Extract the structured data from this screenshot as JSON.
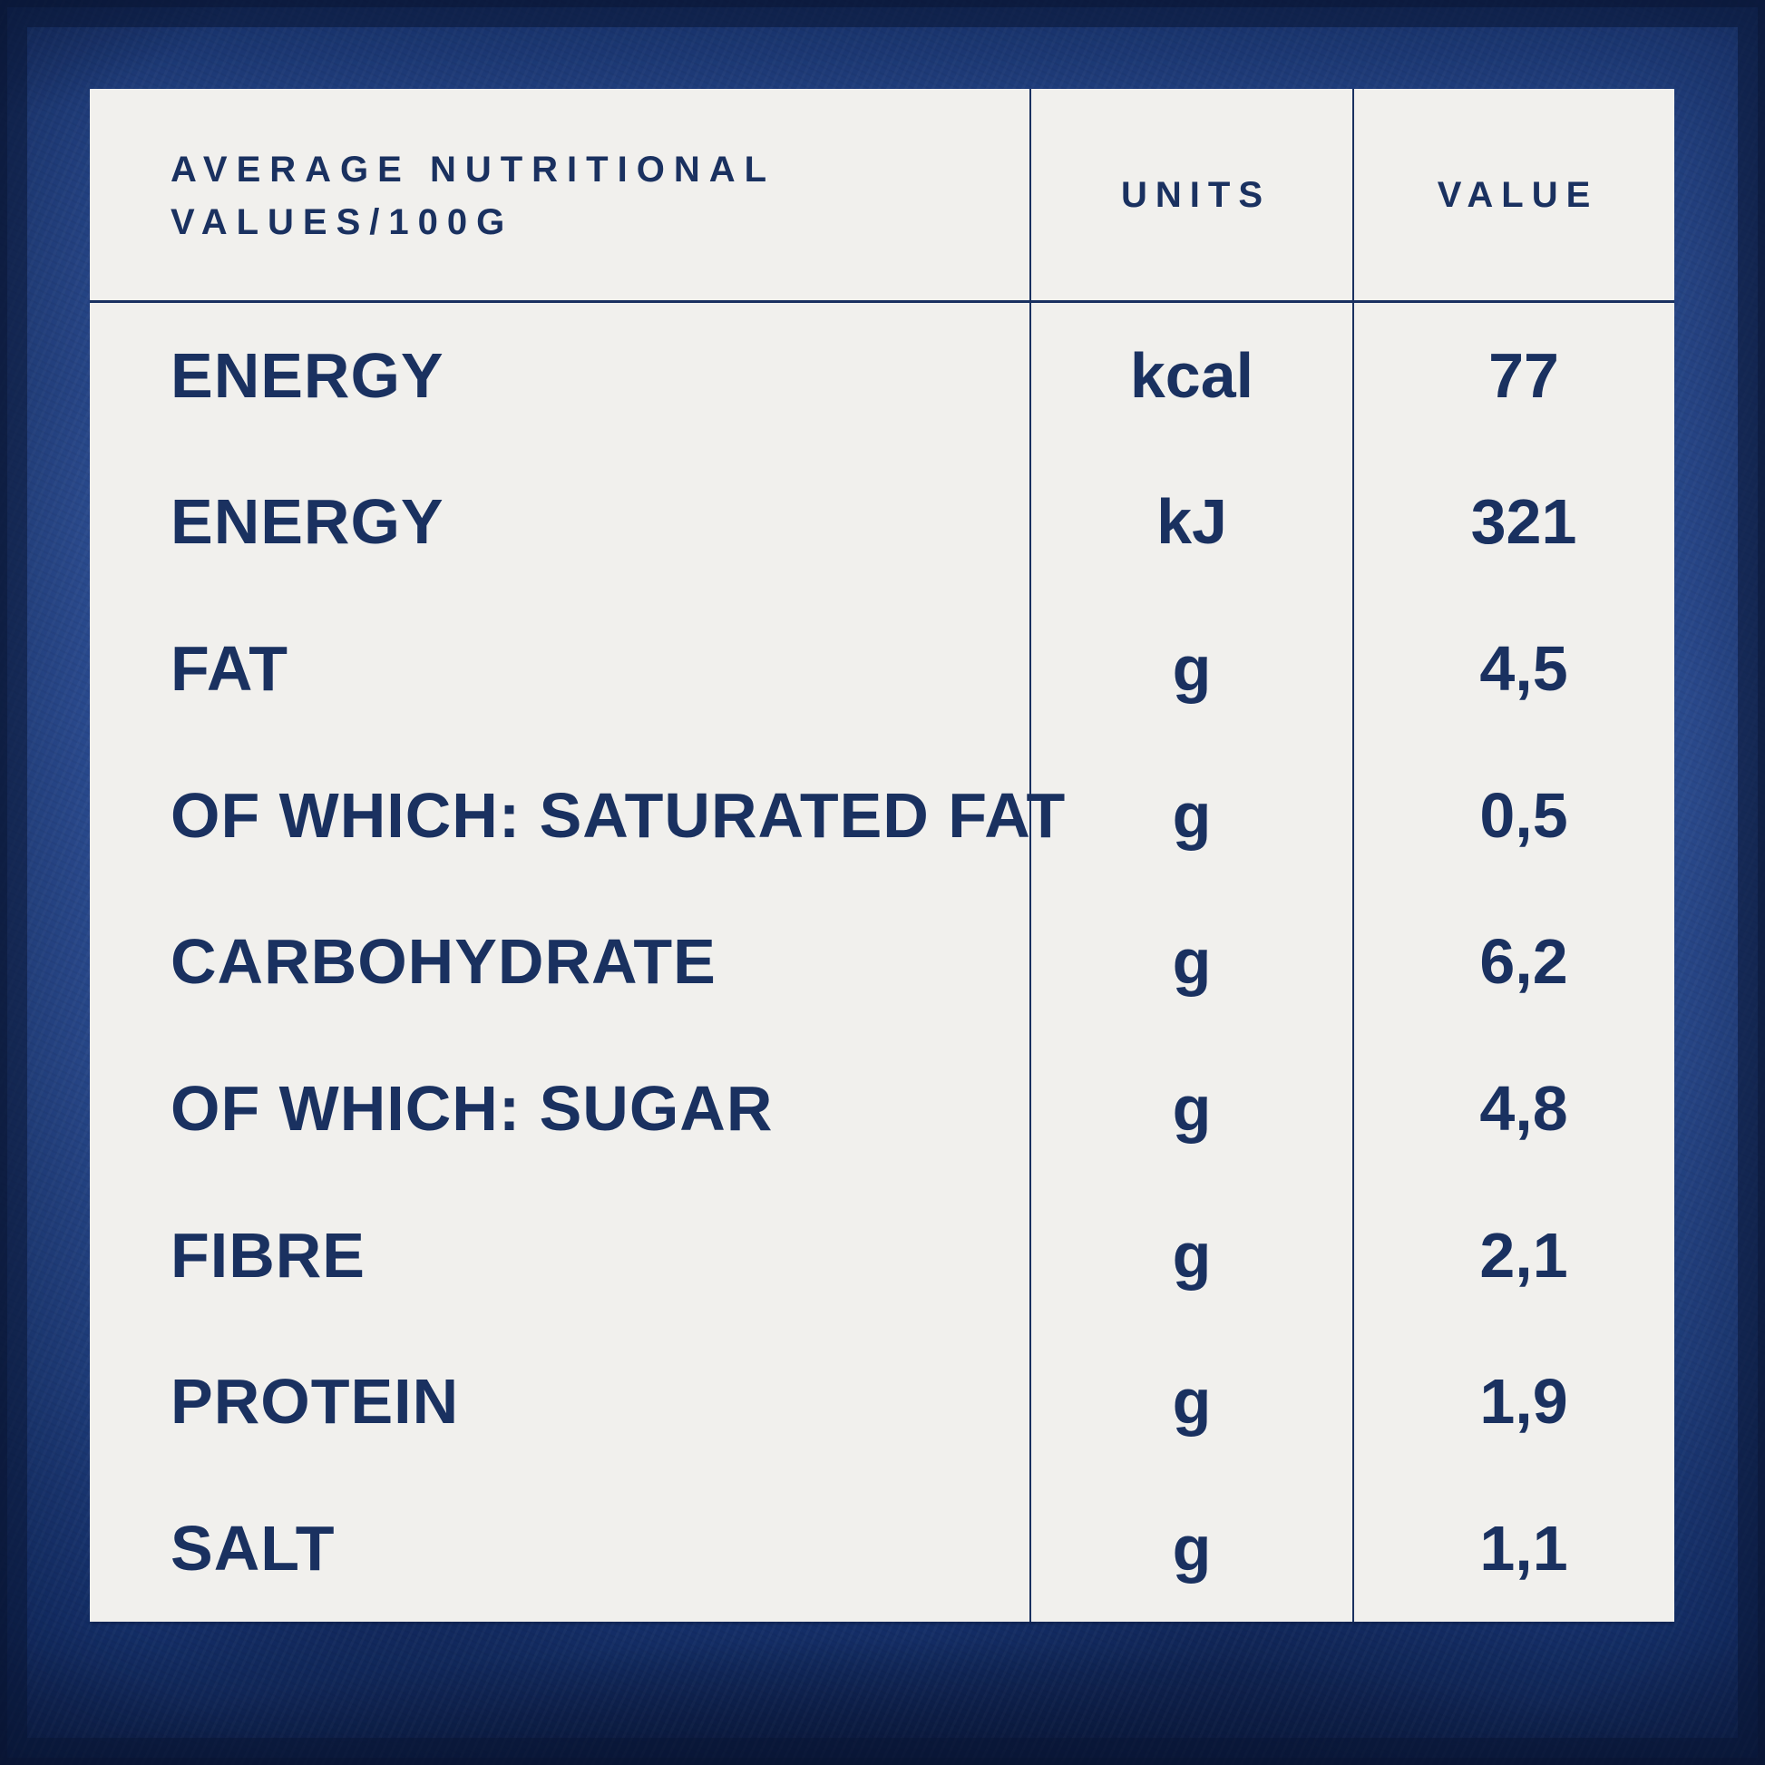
{
  "colors": {
    "text_navy": "#1a3160",
    "line": "#1a3160",
    "table_bg": "#f1f0ed",
    "background_blue": "#2b4c90",
    "frame_navy": "#102450"
  },
  "table": {
    "header": {
      "col1_line1": "AVERAGE NUTRITIONAL",
      "col1_line2": "VALUES/100G",
      "col2": "UNITS",
      "col3": "VALUE"
    },
    "rows": [
      {
        "label": "ENERGY",
        "unit": "kcal",
        "value": "77"
      },
      {
        "label": "ENERGY",
        "unit": "kJ",
        "value": "321"
      },
      {
        "label": "FAT",
        "unit": "g",
        "value": "4,5"
      },
      {
        "label": "OF WHICH: SATURATED FAT",
        "unit": "g",
        "value": "0,5"
      },
      {
        "label": "CARBOHYDRATE",
        "unit": "g",
        "value": "6,2"
      },
      {
        "label": "OF WHICH: SUGAR",
        "unit": "g",
        "value": "4,8"
      },
      {
        "label": "FIBRE",
        "unit": "g",
        "value": "2,1"
      },
      {
        "label": "PROTEIN",
        "unit": "g",
        "value": "1,9"
      },
      {
        "label": "SALT",
        "unit": "g",
        "value": "1,1"
      }
    ]
  }
}
